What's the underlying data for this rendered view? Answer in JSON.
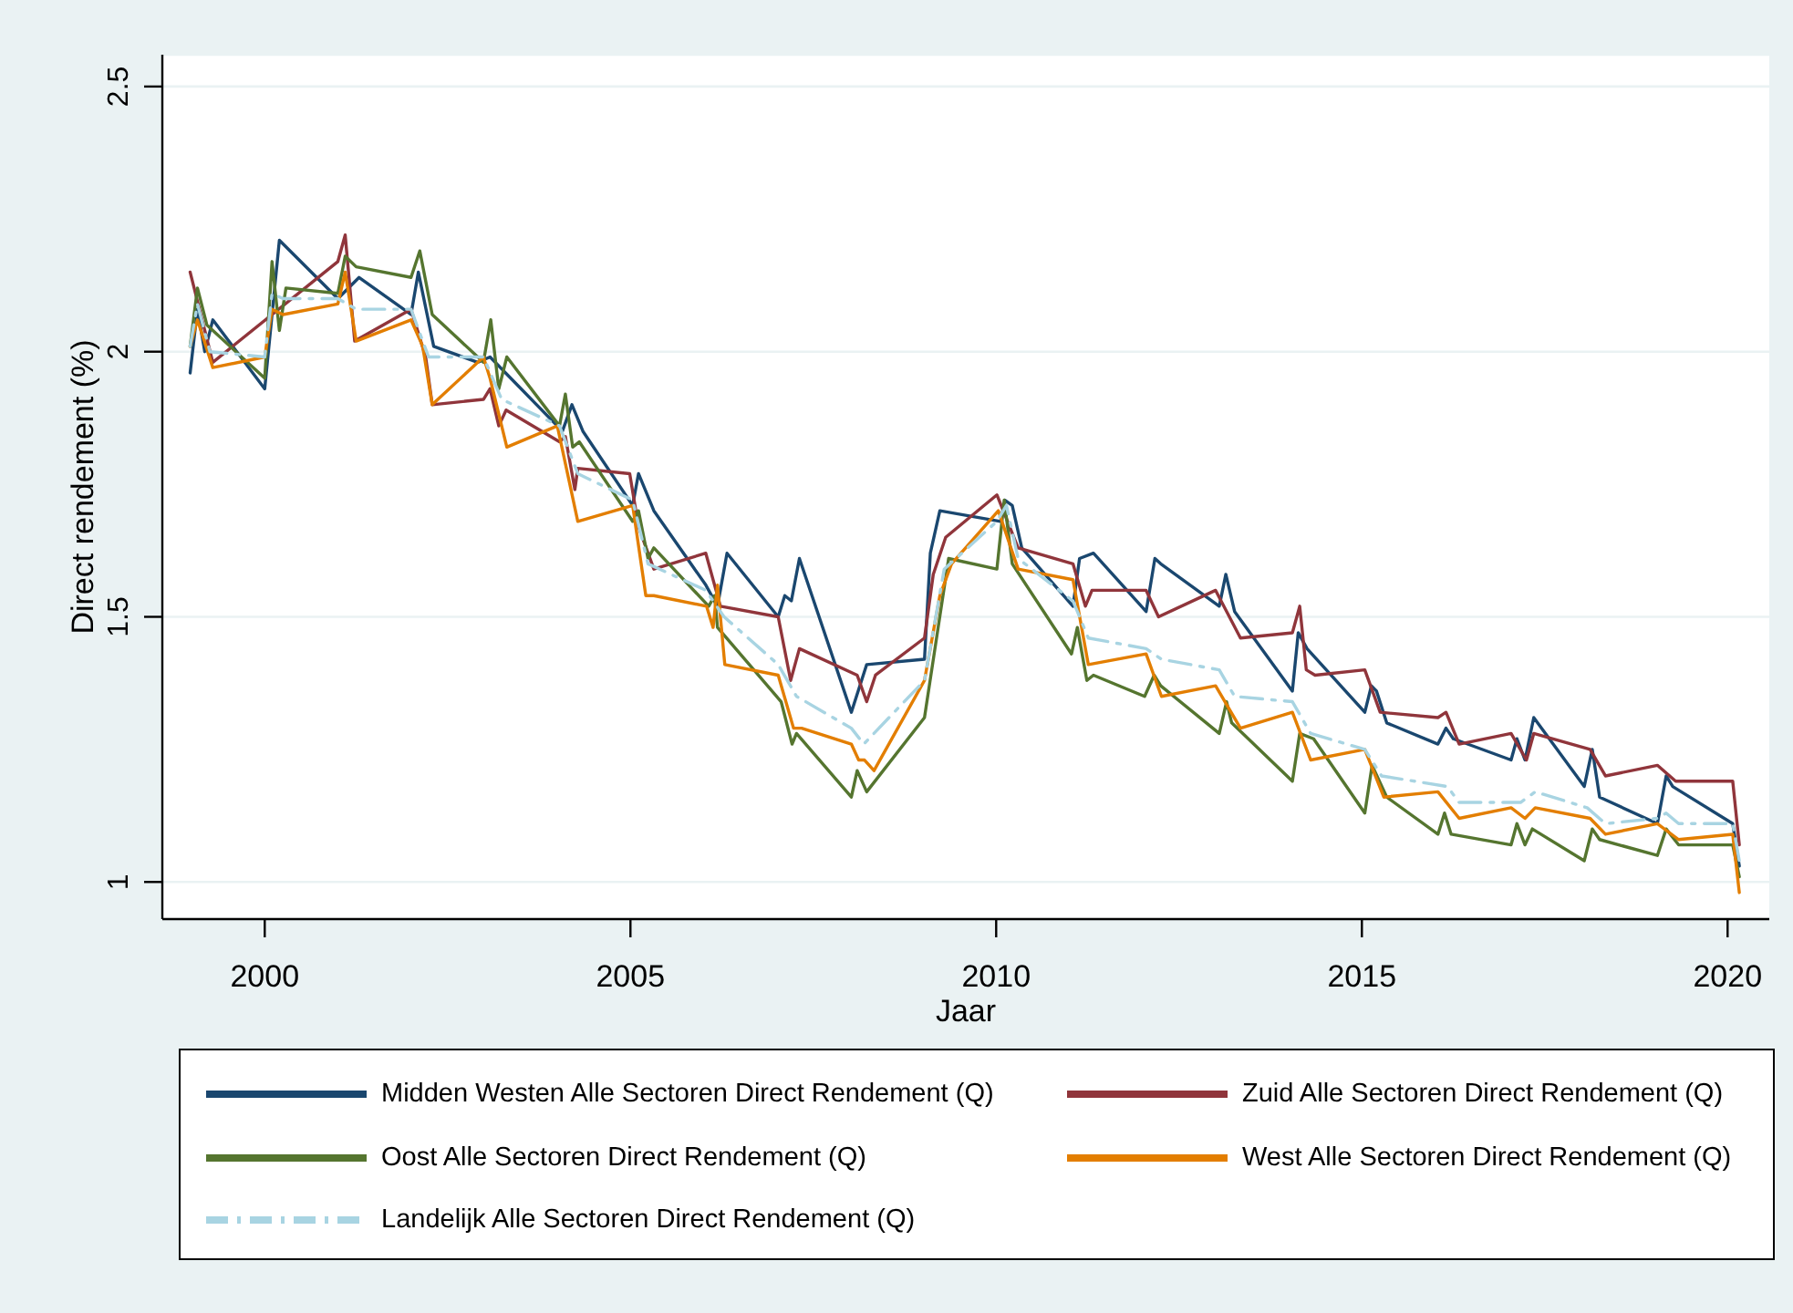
{
  "chart_data": {
    "type": "line",
    "xlabel": "Jaar",
    "ylabel": "Direct rendement (%)",
    "xlim": [
      1998.6,
      2020.57
    ],
    "xticks": [
      2000,
      2005,
      2010,
      2015,
      2020
    ],
    "ylim": [
      0.93,
      2.56
    ],
    "yticks": [
      1,
      1.5,
      2,
      2.5
    ],
    "grid": "y",
    "legend": "bottom",
    "series": [
      {
        "name": "Midden Westen Alle Sectoren Direct Rendement (Q)",
        "color": "#1a476f",
        "x": [
          1998.98,
          1999.08,
          1999.18,
          1999.29,
          2000.0,
          2000.2,
          2001.0,
          2001.29,
          2002.0,
          2002.1,
          2002.31,
          2002.91,
          2003.08,
          2004.07,
          2004.2,
          2004.35,
          2005.03,
          2005.11,
          2005.32,
          2006.03,
          2006.19,
          2006.32,
          2007.02,
          2007.11,
          2007.2,
          2007.31,
          2008.02,
          2008.23,
          2009.02,
          2009.1,
          2009.23,
          2010.06,
          2010.12,
          2010.22,
          2010.35,
          2011.05,
          2011.14,
          2011.33,
          2012.05,
          2012.17,
          2012.25,
          2013.05,
          2013.14,
          2013.26,
          2014.05,
          2014.13,
          2014.25,
          2015.04,
          2015.13,
          2015.2,
          2015.34,
          2016.04,
          2016.15,
          2016.25,
          2017.04,
          2017.12,
          2017.23,
          2017.35,
          2018.04,
          2018.15,
          2018.25,
          2019.04,
          2019.16,
          2019.25,
          2020.07,
          2020.16
        ],
        "values": [
          1.96,
          2.08,
          2.0,
          2.06,
          1.93,
          2.21,
          2.1,
          2.14,
          2.07,
          2.15,
          2.01,
          1.98,
          1.99,
          1.85,
          1.9,
          1.85,
          1.71,
          1.77,
          1.7,
          1.56,
          1.52,
          1.62,
          1.5,
          1.54,
          1.53,
          1.61,
          1.32,
          1.41,
          1.42,
          1.62,
          1.7,
          1.68,
          1.72,
          1.71,
          1.63,
          1.52,
          1.61,
          1.62,
          1.51,
          1.61,
          1.6,
          1.52,
          1.58,
          1.51,
          1.36,
          1.47,
          1.44,
          1.32,
          1.37,
          1.36,
          1.3,
          1.26,
          1.29,
          1.27,
          1.23,
          1.27,
          1.23,
          1.31,
          1.18,
          1.25,
          1.16,
          1.11,
          1.2,
          1.18,
          1.11,
          1.03
        ]
      },
      {
        "name": "Zuid Alle Sectoren Direct Rendement (Q)",
        "color": "#90353b",
        "x": [
          1998.98,
          1999.29,
          2001.0,
          2001.1,
          2001.23,
          2002.0,
          2002.2,
          2002.29,
          2002.99,
          2003.08,
          2003.2,
          2003.3,
          2004.03,
          2004.11,
          2004.24,
          2004.28,
          2004.99,
          2005.11,
          2005.32,
          2006.03,
          2006.23,
          2007.02,
          2007.19,
          2007.31,
          2008.1,
          2008.23,
          2008.35,
          2009.02,
          2009.14,
          2009.31,
          2010.01,
          2010.3,
          2011.05,
          2011.22,
          2011.31,
          2012.05,
          2012.22,
          2013.0,
          2013.34,
          2014.05,
          2014.15,
          2014.24,
          2014.36,
          2015.04,
          2015.25,
          2016.04,
          2016.15,
          2016.33,
          2017.04,
          2017.25,
          2017.35,
          2018.12,
          2018.33,
          2019.04,
          2019.29,
          2020.07,
          2020.16
        ],
        "values": [
          2.15,
          1.98,
          2.17,
          2.22,
          2.02,
          2.08,
          1.99,
          1.9,
          1.91,
          1.93,
          1.86,
          1.89,
          1.83,
          1.84,
          1.74,
          1.78,
          1.77,
          1.67,
          1.59,
          1.62,
          1.52,
          1.5,
          1.38,
          1.44,
          1.39,
          1.34,
          1.39,
          1.46,
          1.58,
          1.65,
          1.73,
          1.63,
          1.6,
          1.52,
          1.55,
          1.55,
          1.5,
          1.55,
          1.46,
          1.47,
          1.52,
          1.4,
          1.39,
          1.4,
          1.32,
          1.31,
          1.32,
          1.26,
          1.28,
          1.23,
          1.28,
          1.25,
          1.2,
          1.22,
          1.19,
          1.19,
          1.07
        ]
      },
      {
        "name": "Oost Alle Sectoren Direct Rendement (Q)",
        "color": "#55752f",
        "x": [
          1998.98,
          1999.08,
          1999.21,
          2000.0,
          2000.1,
          2000.2,
          2000.29,
          2001.0,
          2001.1,
          2001.25,
          2002.0,
          2002.12,
          2002.29,
          2002.99,
          2003.09,
          2003.2,
          2003.31,
          2004.03,
          2004.11,
          2004.21,
          2004.3,
          2005.03,
          2005.11,
          2005.24,
          2005.32,
          2006.07,
          2006.15,
          2006.19,
          2007.06,
          2007.21,
          2007.27,
          2008.02,
          2008.1,
          2008.23,
          2009.02,
          2009.35,
          2010.01,
          2010.11,
          2010.22,
          2011.03,
          2011.11,
          2011.24,
          2011.33,
          2012.03,
          2012.16,
          2012.25,
          2013.05,
          2013.15,
          2013.22,
          2014.05,
          2014.15,
          2014.34,
          2015.04,
          2015.14,
          2015.34,
          2016.04,
          2016.13,
          2016.22,
          2017.04,
          2017.12,
          2017.23,
          2017.33,
          2018.04,
          2018.15,
          2018.25,
          2019.04,
          2019.16,
          2019.33,
          2020.07,
          2020.16
        ],
        "values": [
          2.01,
          2.12,
          2.05,
          1.95,
          2.17,
          2.04,
          2.12,
          2.11,
          2.18,
          2.16,
          2.14,
          2.19,
          2.07,
          1.98,
          2.06,
          1.93,
          1.99,
          1.86,
          1.92,
          1.82,
          1.83,
          1.68,
          1.7,
          1.61,
          1.63,
          1.52,
          1.54,
          1.48,
          1.34,
          1.26,
          1.28,
          1.16,
          1.21,
          1.17,
          1.31,
          1.61,
          1.59,
          1.72,
          1.6,
          1.43,
          1.48,
          1.38,
          1.39,
          1.35,
          1.39,
          1.37,
          1.28,
          1.34,
          1.3,
          1.19,
          1.28,
          1.27,
          1.13,
          1.22,
          1.16,
          1.09,
          1.13,
          1.09,
          1.07,
          1.11,
          1.07,
          1.1,
          1.04,
          1.1,
          1.08,
          1.05,
          1.1,
          1.07,
          1.07,
          1.01
        ]
      },
      {
        "name": "West Alle Sectoren Direct Rendement (Q)",
        "color": "#e37e00",
        "x": [
          1998.98,
          1999.08,
          1999.29,
          2000.0,
          2000.1,
          2000.25,
          2001.0,
          2001.1,
          2001.25,
          2002.0,
          2002.16,
          2002.29,
          2002.99,
          2003.08,
          2003.31,
          2004.0,
          2004.28,
          2005.03,
          2005.21,
          2005.32,
          2006.04,
          2006.13,
          2006.19,
          2006.29,
          2007.02,
          2007.23,
          2007.34,
          2008.02,
          2008.12,
          2008.2,
          2008.33,
          2009.02,
          2009.23,
          2009.39,
          2010.03,
          2010.3,
          2011.05,
          2011.26,
          2012.05,
          2012.26,
          2013.0,
          2013.17,
          2013.34,
          2014.05,
          2014.3,
          2015.04,
          2015.3,
          2016.04,
          2016.33,
          2017.04,
          2017.23,
          2017.37,
          2018.12,
          2018.33,
          2019.04,
          2019.33,
          2020.07,
          2020.16
        ],
        "values": [
          2.01,
          2.06,
          1.97,
          1.99,
          2.08,
          2.07,
          2.09,
          2.15,
          2.02,
          2.06,
          2.01,
          1.9,
          1.99,
          1.95,
          1.82,
          1.86,
          1.68,
          1.71,
          1.54,
          1.54,
          1.52,
          1.48,
          1.56,
          1.41,
          1.39,
          1.29,
          1.29,
          1.26,
          1.23,
          1.23,
          1.21,
          1.38,
          1.54,
          1.6,
          1.7,
          1.59,
          1.57,
          1.41,
          1.43,
          1.35,
          1.37,
          1.33,
          1.29,
          1.32,
          1.23,
          1.25,
          1.16,
          1.17,
          1.12,
          1.14,
          1.12,
          1.14,
          1.12,
          1.09,
          1.11,
          1.08,
          1.09,
          0.98
        ]
      },
      {
        "name": "Landelijk Alle Sectoren Direct Rendement (Q)",
        "color": "#a8d4e2",
        "line_style": "dashdot",
        "x": [
          1998.98,
          1999.08,
          1999.25,
          2000.0,
          2000.1,
          2000.25,
          2001.0,
          2001.25,
          2002.0,
          2002.24,
          2002.99,
          2003.24,
          2004.03,
          2004.28,
          2005.03,
          2005.24,
          2006.03,
          2006.28,
          2007.02,
          2007.27,
          2008.02,
          2008.19,
          2009.02,
          2009.29,
          2010.01,
          2010.14,
          2010.3,
          2011.05,
          2011.26,
          2012.05,
          2012.26,
          2013.05,
          2013.26,
          2014.05,
          2014.3,
          2015.04,
          2015.27,
          2016.17,
          2016.33,
          2017.17,
          2017.37,
          2018.08,
          2018.33,
          2019.04,
          2019.16,
          2019.33,
          2020.07,
          2020.16
        ],
        "values": [
          2.01,
          2.09,
          2.0,
          1.99,
          2.11,
          2.1,
          2.1,
          2.08,
          2.08,
          1.99,
          1.99,
          1.91,
          1.86,
          1.77,
          1.72,
          1.6,
          1.55,
          1.5,
          1.41,
          1.35,
          1.29,
          1.26,
          1.38,
          1.59,
          1.68,
          1.71,
          1.61,
          1.53,
          1.46,
          1.44,
          1.42,
          1.4,
          1.35,
          1.34,
          1.28,
          1.25,
          1.2,
          1.18,
          1.15,
          1.15,
          1.17,
          1.14,
          1.11,
          1.12,
          1.13,
          1.11,
          1.11,
          1.04
        ]
      }
    ]
  }
}
